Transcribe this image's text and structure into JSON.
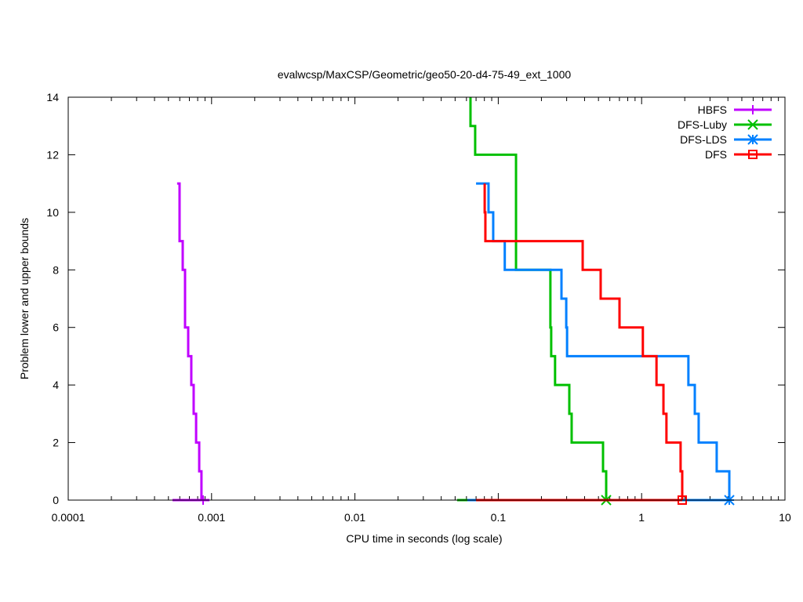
{
  "chart_data": {
    "type": "line",
    "title": "evalwcsp/MaxCSP/Geometric/geo50-20-d4-75-49_ext_1000",
    "xlabel": "CPU time in seconds (log scale)",
    "ylabel": "Problem lower and upper bounds",
    "xscale": "log",
    "xlim": [
      0.0001,
      10
    ],
    "ylim": [
      0,
      14
    ],
    "xticks": [
      {
        "v": 0.0001,
        "label": "0.0001"
      },
      {
        "v": 0.001,
        "label": "0.001"
      },
      {
        "v": 0.01,
        "label": "0.01"
      },
      {
        "v": 0.1,
        "label": "0.1"
      },
      {
        "v": 1,
        "label": "1"
      },
      {
        "v": 10,
        "label": "10"
      }
    ],
    "yticks": [
      {
        "v": 0,
        "label": "0"
      },
      {
        "v": 2,
        "label": "2"
      },
      {
        "v": 4,
        "label": "4"
      },
      {
        "v": 6,
        "label": "6"
      },
      {
        "v": 8,
        "label": "8"
      },
      {
        "v": 10,
        "label": "10"
      },
      {
        "v": 12,
        "label": "12"
      },
      {
        "v": 14,
        "label": "14"
      }
    ],
    "grid": false,
    "legend_position": "top-right",
    "series": [
      {
        "name": "HBFS",
        "color": "#c000ff",
        "marker": "plus",
        "upper": [
          [
            0.000575,
            11
          ],
          [
            0.000598,
            11
          ],
          [
            0.000598,
            9
          ],
          [
            0.000629,
            9
          ],
          [
            0.000629,
            8
          ],
          [
            0.000653,
            8
          ],
          [
            0.000653,
            6
          ],
          [
            0.000687,
            6
          ],
          [
            0.000687,
            5
          ],
          [
            0.000722,
            5
          ],
          [
            0.000722,
            4
          ],
          [
            0.00075,
            4
          ],
          [
            0.00075,
            3
          ],
          [
            0.00078,
            3
          ],
          [
            0.00078,
            2
          ],
          [
            0.00082,
            2
          ],
          [
            0.00082,
            1
          ],
          [
            0.00085,
            1
          ],
          [
            0.00085,
            0
          ]
        ],
        "lower": [
          [
            0.000534,
            0
          ],
          [
            0.000966,
            0
          ]
        ],
        "marker_at": [
          0.000873,
          0
        ]
      },
      {
        "name": "DFS-Luby",
        "color": "#00c000",
        "marker": "x",
        "upper": [
          [
            0.064,
            14
          ],
          [
            0.064,
            13
          ],
          [
            0.069,
            13
          ],
          [
            0.069,
            12
          ],
          [
            0.133,
            12
          ],
          [
            0.133,
            8
          ],
          [
            0.231,
            8
          ],
          [
            0.231,
            6
          ],
          [
            0.234,
            6
          ],
          [
            0.234,
            5
          ],
          [
            0.249,
            5
          ],
          [
            0.249,
            4
          ],
          [
            0.313,
            4
          ],
          [
            0.313,
            3
          ],
          [
            0.325,
            3
          ],
          [
            0.325,
            2
          ],
          [
            0.538,
            2
          ],
          [
            0.538,
            1
          ],
          [
            0.566,
            1
          ],
          [
            0.566,
            0
          ]
        ],
        "lower": [
          [
            0.0516,
            0
          ],
          [
            0.566,
            0
          ]
        ],
        "marker_at": [
          0.566,
          0
        ]
      },
      {
        "name": "DFS-LDS",
        "color": "#0080ff",
        "marker": "asterisk",
        "upper": [
          [
            0.07,
            11
          ],
          [
            0.0855,
            11
          ],
          [
            0.0855,
            10
          ],
          [
            0.0922,
            10
          ],
          [
            0.0922,
            9
          ],
          [
            0.111,
            9
          ],
          [
            0.111,
            8
          ],
          [
            0.276,
            8
          ],
          [
            0.276,
            7
          ],
          [
            0.298,
            7
          ],
          [
            0.298,
            6
          ],
          [
            0.302,
            6
          ],
          [
            0.302,
            5
          ],
          [
            2.12,
            5
          ],
          [
            2.12,
            4
          ],
          [
            2.35,
            4
          ],
          [
            2.35,
            3
          ],
          [
            2.5,
            3
          ],
          [
            2.5,
            2
          ],
          [
            3.34,
            2
          ],
          [
            3.34,
            1
          ],
          [
            4.09,
            1
          ],
          [
            4.09,
            0
          ]
        ],
        "lower": [
          [
            0.0609,
            0
          ],
          [
            4.09,
            0
          ]
        ],
        "marker_at": [
          4.09,
          0
        ]
      },
      {
        "name": "DFS",
        "color": "#ff0000",
        "marker": "square",
        "upper": [
          [
            0.0804,
            11
          ],
          [
            0.0804,
            10
          ],
          [
            0.0813,
            10
          ],
          [
            0.0813,
            9
          ],
          [
            0.388,
            9
          ],
          [
            0.388,
            8
          ],
          [
            0.518,
            8
          ],
          [
            0.518,
            7
          ],
          [
            0.701,
            7
          ],
          [
            0.701,
            6
          ],
          [
            1.02,
            6
          ],
          [
            1.02,
            5
          ],
          [
            1.27,
            5
          ],
          [
            1.27,
            4
          ],
          [
            1.42,
            4
          ],
          [
            1.42,
            3
          ],
          [
            1.49,
            3
          ],
          [
            1.49,
            2
          ],
          [
            1.87,
            2
          ],
          [
            1.87,
            1
          ],
          [
            1.92,
            1
          ],
          [
            1.92,
            0
          ]
        ],
        "lower": [
          [
            0.07,
            0
          ],
          [
            1.92,
            0
          ]
        ],
        "marker_at": [
          1.92,
          0
        ]
      }
    ]
  }
}
